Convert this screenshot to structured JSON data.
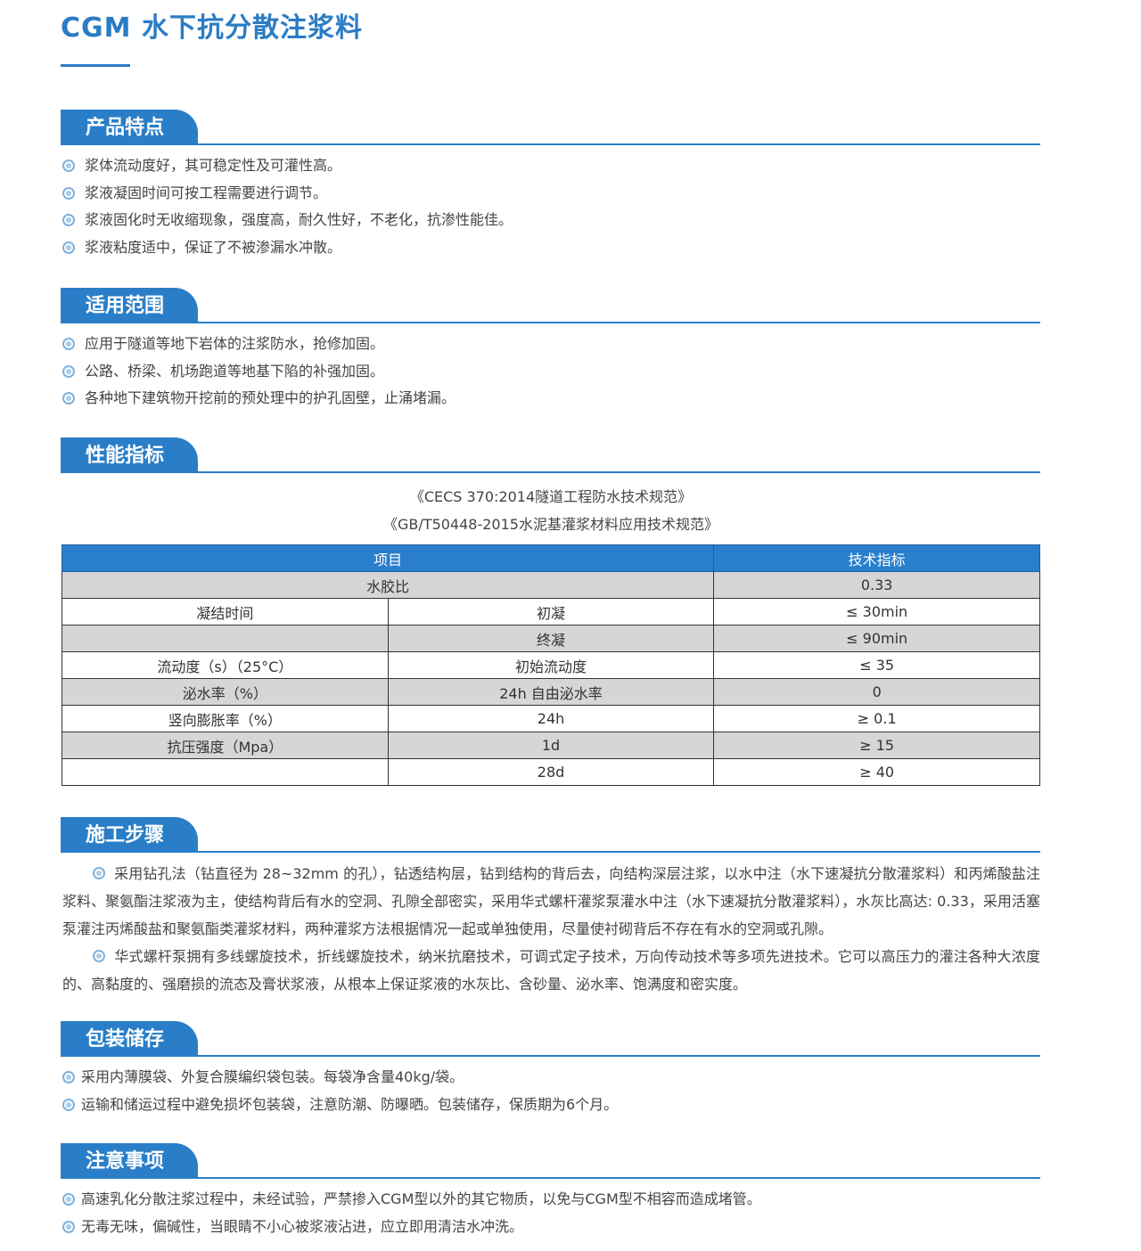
{
  "title": "CGM 水下抗分散注浆料",
  "sections": [
    {
      "heading": "产品特点",
      "items": [
        "浆体流动度好，其可稳定性及可灌性高。",
        "浆液凝固时间可按工程需要进行调节。",
        "浆液固化时无收缩现象，强度高，耐久性好，不老化，抗渗性能佳。",
        "浆液粘度适中，保证了不被渗漏水冲散。"
      ]
    },
    {
      "heading": "适用范围",
      "items": [
        "应用于隧道等地下岩体的注浆防水，抢修加固。",
        "公路、桥梁、机场跑道等地基下陷的补强加固。",
        "各种地下建筑物开挖前的预处理中的护孔固壁，止涌堵漏。"
      ]
    },
    {
      "heading": "性能指标",
      "references": [
        "《CECS 370:2014隧道工程防水技术规范》",
        "《GB/T50448-2015水泥基灌浆材料应用技术规范》"
      ],
      "table": {
        "header": [
          "项目",
          "技术指标"
        ],
        "rows": [
          {
            "item": "水胶比",
            "spec": "0.33"
          },
          {
            "item": "凝结时间",
            "sub": "初凝",
            "spec": "≤ 30min"
          },
          {
            "sub": "终凝",
            "spec": "≤ 90min"
          },
          {
            "item": "流动度（s）（25°C）",
            "sub": "初始流动度",
            "spec": "≤ 35"
          },
          {
            "item": "泌水率（%）",
            "sub": "24h 自由泌水率",
            "spec": "0"
          },
          {
            "item": "竖向膨胀率（%）",
            "sub": "24h",
            "spec": "≥ 0.1"
          },
          {
            "item": "抗压强度（Mpa）",
            "sub": "1d",
            "spec": "≥ 15"
          },
          {
            "sub": "28d",
            "spec": "≥ 40"
          }
        ]
      }
    },
    {
      "heading": "施工步骤",
      "paragraphs": [
        "采用钻孔法（钻直径为 28~32mm 的孔），钻透结构层，钻到结构的背后去，向结构深层注浆，以水中注（水下速凝抗分散灌浆料）和丙烯酸盐注浆料、聚氨酯注浆液为主，使结构背后有水的空洞、孔隙全部密实，采用华式螺杆灌浆泵灌水中注（水下速凝抗分散灌浆料），水灰比高达: 0.33，采用活塞泵灌注丙烯酸盐和聚氨酯类灌浆材料，两种灌浆方法根据情况一起或单独使用，尽量使衬砌背后不存在有水的空洞或孔隙。",
        "华式螺杆泵拥有多线螺旋技术，折线螺旋技术，纳米抗磨技术，可调式定子技术，万向传动技术等多项先进技术。它可以高压力的灌注各种大浓度的、高黏度的、强磨损的流态及膏状浆液，从根本上保证浆液的水灰比、含砂量、泌水率、饱满度和密实度。"
      ]
    },
    {
      "heading": "包装储存",
      "items": [
        "采用内薄膜袋、外复合膜编织袋包装。每袋净含量40kg/袋。",
        "运输和储运过程中避免损坏包装袋，注意防潮、防曝晒。包装储存，保质期为6个月。"
      ]
    },
    {
      "heading": "注意事项",
      "items": [
        "高速乳化分散注浆过程中，未经试验，严禁掺入CGM型以外的其它物质，以免与CGM型不相容而造成堵管。",
        "无毒无味，偏碱性，当眼睛不小心被浆液沾进，应立即用清洁水冲洗。"
      ]
    }
  ]
}
